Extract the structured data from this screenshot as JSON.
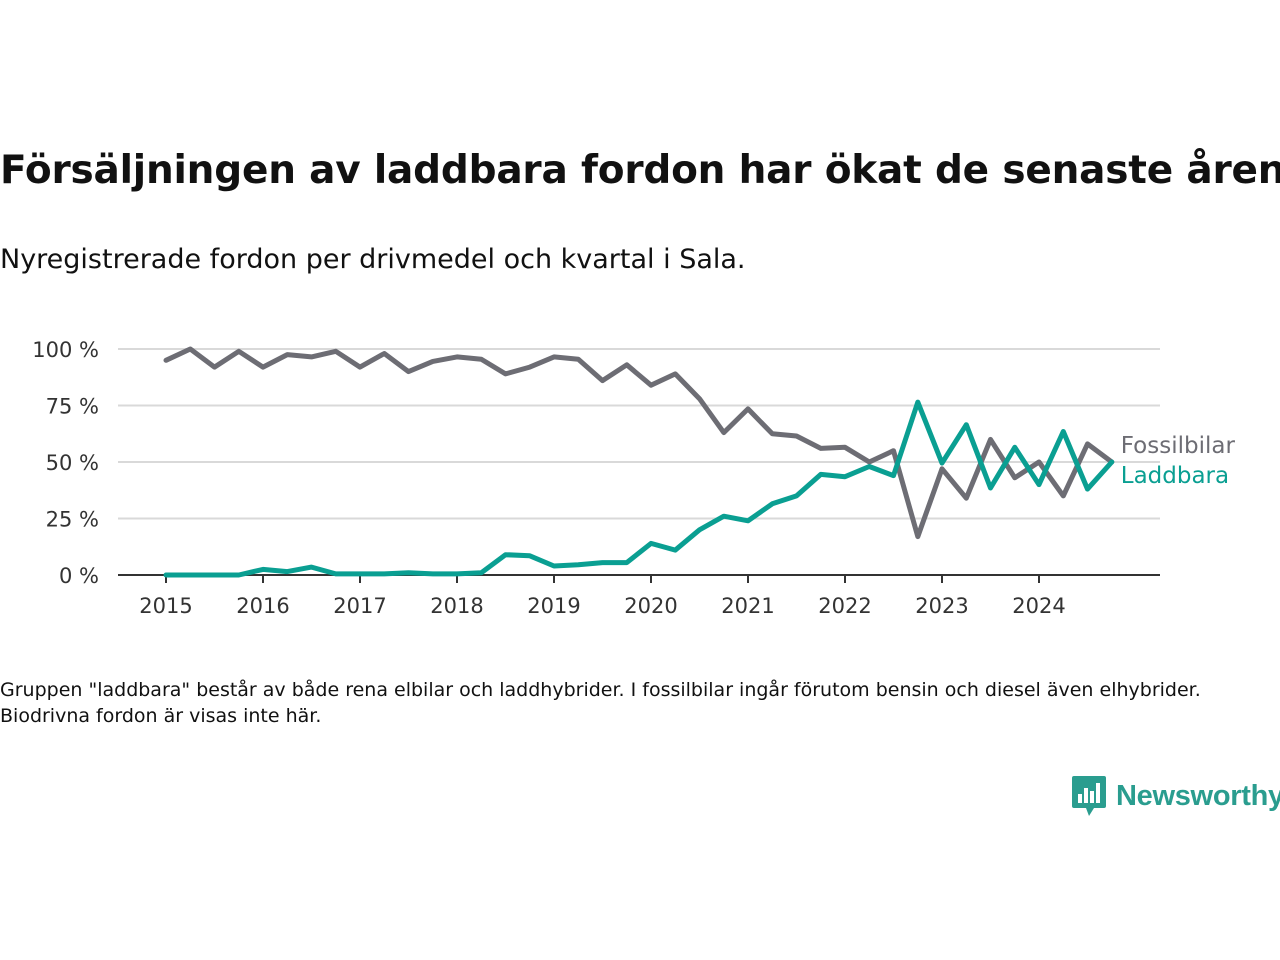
{
  "header": {
    "title": "Försäljningen av laddbara fordon har ökat de senaste åren",
    "subtitle": "Nyregistrerade fordon per drivmedel och kvartal i Sala."
  },
  "footer": {
    "note": "Gruppen \"laddbara\" består av både rena elbilar och laddhybrider. I fossilbilar ingår förutom bensin och diesel även elhybrider. Biodrivna fordon är visas inte här.",
    "brand": "Newsworthy",
    "brand_icon": "newsworthy-logo-icon"
  },
  "chart_data": {
    "type": "line",
    "x_start": 2015,
    "x_step": 0.25,
    "x_ticks": [
      "2015",
      "2016",
      "2017",
      "2018",
      "2019",
      "2020",
      "2021",
      "2022",
      "2023",
      "2024"
    ],
    "y_ticks": [
      {
        "value": 0,
        "label": "0 %"
      },
      {
        "value": 25,
        "label": "25 %"
      },
      {
        "value": 50,
        "label": "50 %"
      },
      {
        "value": 75,
        "label": "75 %"
      },
      {
        "value": 100,
        "label": "100 %"
      }
    ],
    "ylim": [
      0,
      100
    ],
    "grid": true,
    "legend": "right-end labels",
    "series": [
      {
        "name": "Fossilbilar",
        "color": "#6d6d74",
        "values": [
          95,
          100,
          92,
          99,
          92,
          97.5,
          96.5,
          99,
          92,
          98,
          90,
          94.5,
          96.5,
          95.5,
          89,
          92,
          96.5,
          95.5,
          86,
          93,
          84,
          89,
          78,
          63,
          73.5,
          62.5,
          61.5,
          56,
          56.5,
          50,
          55,
          17,
          47,
          34,
          60,
          43,
          50,
          35,
          58,
          50
        ]
      },
      {
        "name": "Laddbara",
        "color": "#0a9f92",
        "values": [
          0,
          0,
          0,
          0,
          2.5,
          1.5,
          3.5,
          0.5,
          0.5,
          0.5,
          1,
          0.5,
          0.5,
          1,
          9,
          8.5,
          4,
          4.5,
          5.5,
          5.5,
          14,
          11,
          20,
          26,
          24,
          31.5,
          35,
          44.5,
          43.5,
          48,
          44,
          76.5,
          49.5,
          66.5,
          38.5,
          56.5,
          40,
          63.5,
          38,
          50
        ]
      }
    ]
  }
}
